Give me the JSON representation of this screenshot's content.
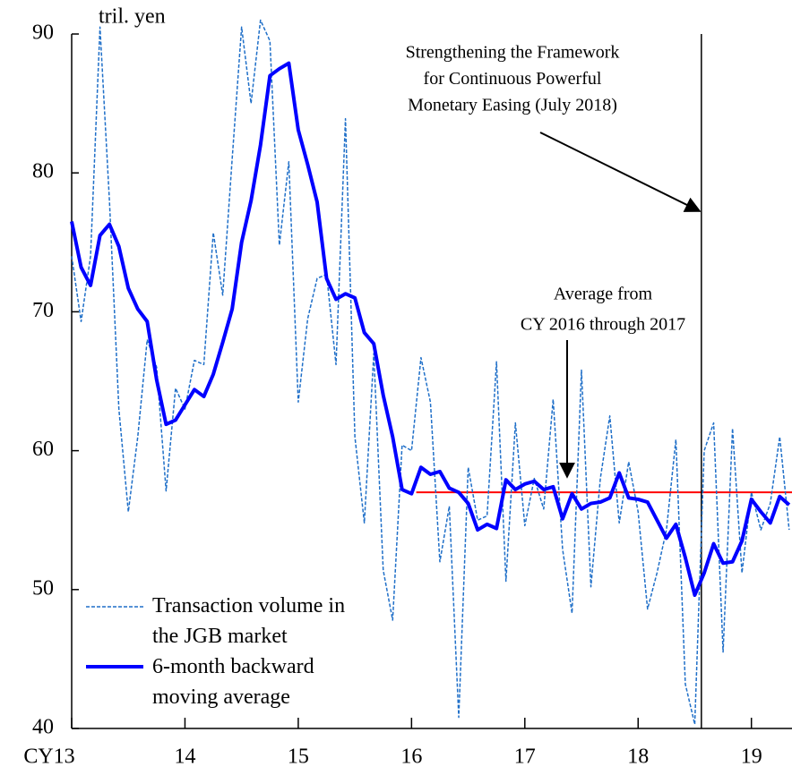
{
  "chart_data": {
    "type": "line",
    "y_axis_label": "tril. yen",
    "xlim": [
      0,
      76.3
    ],
    "xticks": [
      {
        "value": 0,
        "label": "CY13"
      },
      {
        "value": 12,
        "label": "14"
      },
      {
        "value": 24,
        "label": "15"
      },
      {
        "value": 36,
        "label": "16"
      },
      {
        "value": 48,
        "label": "17"
      },
      {
        "value": 60,
        "label": "18"
      },
      {
        "value": 72,
        "label": "19"
      }
    ],
    "ylim": [
      40,
      90
    ],
    "yticks": [
      40,
      50,
      60,
      70,
      80,
      90
    ],
    "x": [
      0,
      1,
      2,
      3,
      4,
      5,
      6,
      7,
      8,
      9,
      10,
      11,
      12,
      13,
      14,
      15,
      16,
      17,
      18,
      19,
      20,
      21,
      22,
      23,
      24,
      25,
      26,
      27,
      28,
      29,
      30,
      31,
      32,
      33,
      34,
      35,
      36,
      37,
      38,
      39,
      40,
      41,
      42,
      43,
      44,
      45,
      46,
      47,
      48,
      49,
      50,
      51,
      52,
      53,
      54,
      55,
      56,
      57,
      58,
      59,
      60,
      61,
      62,
      63,
      64,
      65,
      66,
      67,
      68,
      69,
      70,
      71,
      72,
      73,
      74,
      75,
      76
    ],
    "series": [
      {
        "name": "Transaction volume in the JGB market",
        "color": "#1f6fc8",
        "style": "dashed",
        "values": [
          74,
          69.3,
          74,
          90.5,
          78,
          63,
          55.6,
          61,
          68,
          66,
          57.1,
          64.5,
          63,
          66.5,
          66.2,
          75.7,
          71.2,
          81,
          90.5,
          85,
          91,
          89.5,
          74.8,
          80.8,
          63.5,
          69.5,
          72.4,
          72.7,
          66.2,
          83.9,
          61,
          54.8,
          67,
          51.4,
          47.8,
          60.4,
          60,
          66.7,
          63.5,
          52,
          56,
          40.8,
          58.8,
          55,
          55.3,
          66.4,
          50.6,
          62,
          54.6,
          58,
          55.8,
          63.7,
          52.9,
          48.3,
          65.8,
          50.2,
          58,
          62.5,
          54.8,
          59.2,
          55.6,
          48.6,
          51.2,
          54.3,
          60.8,
          43.2,
          40.3,
          60,
          62,
          45.5,
          61.6,
          51.2,
          57,
          54.3,
          56.2,
          61,
          54.3
        ]
      },
      {
        "name": "6-month backward moving average",
        "color": "#0000ff",
        "style": "solid",
        "values": [
          76.5,
          73.2,
          71.9,
          75.5,
          76.3,
          74.7,
          71.7,
          70.2,
          69.3,
          65.1,
          61.9,
          62.2,
          63.3,
          64.4,
          63.9,
          65.5,
          67.8,
          70.2,
          75,
          78,
          82,
          87,
          87.5,
          87.9,
          83.1,
          80.6,
          77.9,
          72.4,
          70.9,
          71.3,
          71,
          68.5,
          67.7,
          64,
          61,
          57.2,
          56.9,
          58.8,
          58.3,
          58.5,
          57.3,
          57,
          56.2,
          54.3,
          54.7,
          54.4,
          57.9,
          57.2,
          57.6,
          57.8,
          57.2,
          57.4,
          55.1,
          56.9,
          55.8,
          56.2,
          56.3,
          56.6,
          58.4,
          56.6,
          56.5,
          56.3,
          55,
          53.7,
          54.7,
          52.3,
          49.6,
          51.2,
          53.3,
          51.9,
          52,
          53.5,
          56.5,
          55.6,
          54.8,
          56.7,
          56.1
        ]
      }
    ],
    "average_line": {
      "value": 57,
      "x_from": 36.5,
      "x_to": 76.3,
      "color": "#ff0000"
    },
    "event_line": {
      "x": 66.7,
      "color": "#000000"
    },
    "annotations": [
      {
        "lines": [
          "Strengthening the Framework",
          "for Continuous Powerful",
          "Monetary Easing (July 2018)"
        ]
      },
      {
        "lines": [
          "Average from",
          "CY 2016 through 2017"
        ]
      }
    ],
    "legend": "bottom-left"
  }
}
